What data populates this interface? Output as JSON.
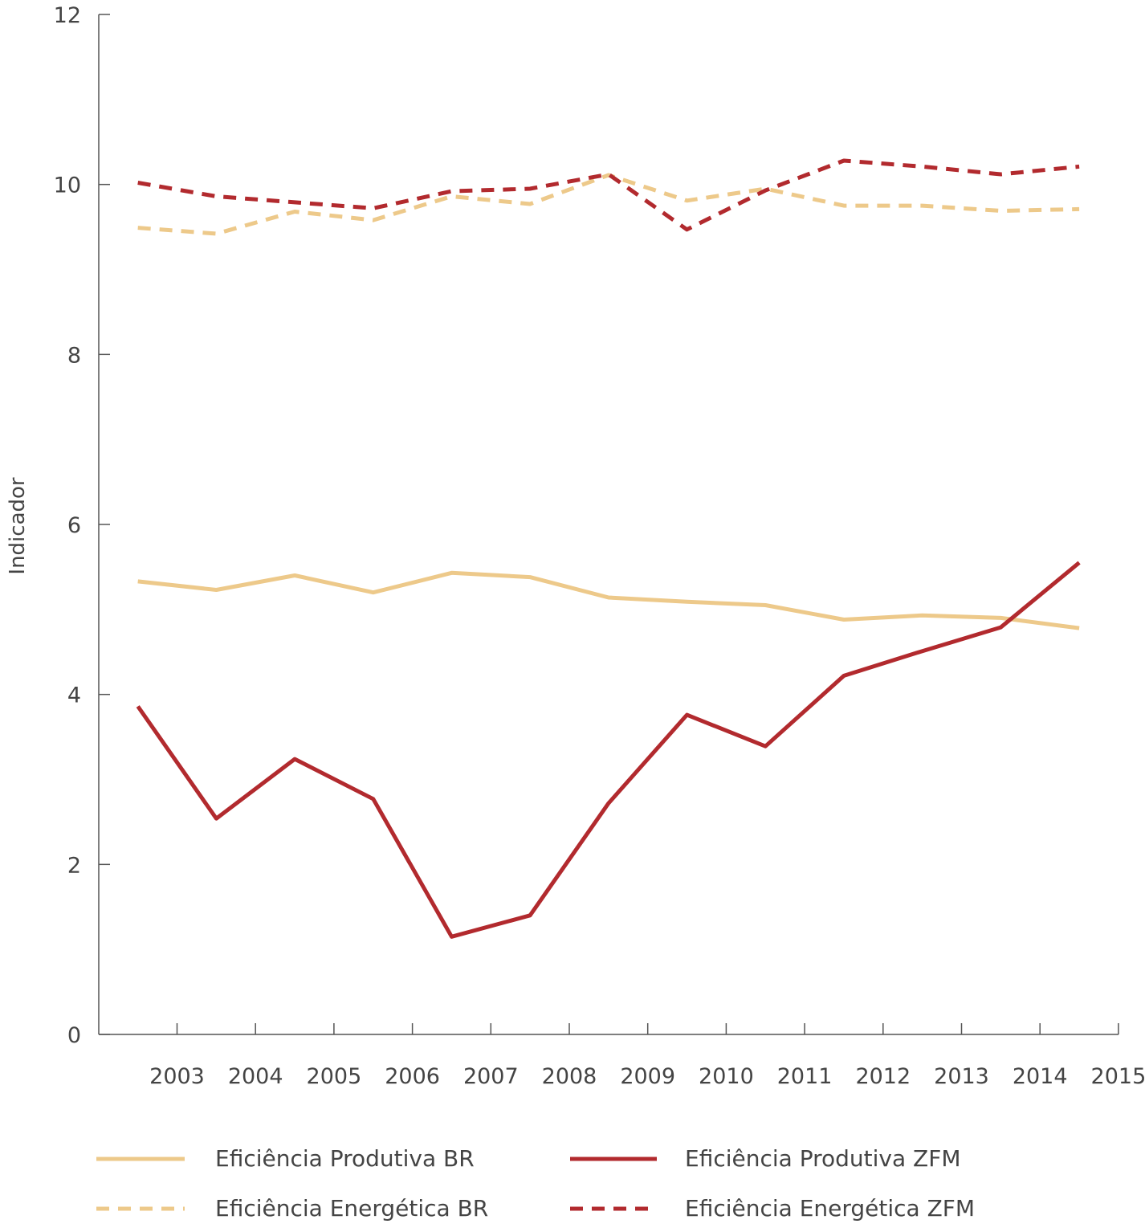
{
  "chart_data": {
    "type": "line",
    "title": "",
    "xlabel": "",
    "ylabel": "Indicador",
    "ylim": [
      0,
      12
    ],
    "yticks": [
      "0",
      "2",
      "4",
      "6",
      "8",
      "10",
      "12"
    ],
    "categories": [
      "2003",
      "2004",
      "2005",
      "2006",
      "2007",
      "2008",
      "2009",
      "2010",
      "2011",
      "2012",
      "2013",
      "2014",
      "2015"
    ],
    "grid": false,
    "legend": "bottom",
    "series": [
      {
        "name": "Eficiência Produtiva BR",
        "style": "solid",
        "color": "#EDC98A",
        "values": [
          5.33,
          5.23,
          5.4,
          5.2,
          5.43,
          5.38,
          5.14,
          5.09,
          5.05,
          4.88,
          4.93,
          4.9,
          4.78
        ]
      },
      {
        "name": "Eficiência Produtiva ZFM",
        "style": "solid",
        "color": "#B22A2E",
        "values": [
          3.86,
          2.54,
          3.24,
          2.77,
          1.15,
          1.4,
          2.72,
          3.76,
          3.39,
          4.22,
          4.51,
          4.79,
          5.55
        ]
      },
      {
        "name": "Eficiência Energética BR",
        "style": "dashed",
        "color": "#EDC98A",
        "values": [
          9.49,
          9.42,
          9.68,
          9.58,
          9.86,
          9.77,
          10.11,
          9.81,
          9.95,
          9.75,
          9.75,
          9.69,
          9.71
        ]
      },
      {
        "name": "Eficiência Energética ZFM",
        "style": "dashed",
        "color": "#B22A2E",
        "values": [
          10.02,
          9.86,
          9.79,
          9.72,
          9.92,
          9.95,
          10.12,
          9.47,
          9.93,
          10.28,
          10.21,
          10.12,
          10.21
        ]
      }
    ]
  }
}
